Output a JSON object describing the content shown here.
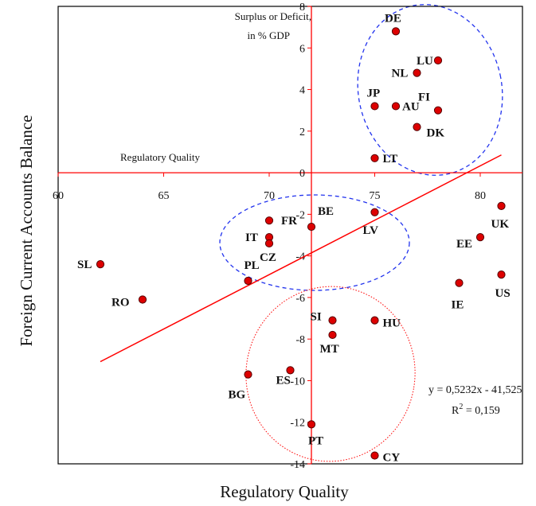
{
  "colors": {
    "axis": "#ff0000",
    "frame": "#000000",
    "point_fill": "#dd0000",
    "point_stroke": "#550000",
    "regression": "#ff0000",
    "ellipse_upper": "#2233ee",
    "ellipse_mid": "#2233ee",
    "ellipse_lower": "#ff0000"
  },
  "chart_data": {
    "type": "scatter",
    "xlabel": "Regulatory Quality",
    "ylabel": "Foreign Current Accounts Balance",
    "x_axis_inline_label": "Regulatory Quality",
    "y_axis_note_line1": "Surplus or Deficit,",
    "y_axis_note_line2": "in % GDP",
    "xlim": [
      60,
      82
    ],
    "ylim": [
      -14,
      8
    ],
    "x_axis_crosses_at_y": 0,
    "y_axis_crosses_at_x": 72,
    "x_ticks": [
      60,
      65,
      70,
      75,
      80
    ],
    "x_tick_labels": [
      "60",
      "65",
      "70",
      "75",
      "80"
    ],
    "y_ticks": [
      8,
      6,
      4,
      2,
      0,
      -2,
      -4,
      -6,
      -8,
      -10,
      -12,
      -14
    ],
    "y_tick_labels": [
      "8",
      "6",
      "4",
      "2",
      "0",
      "-2",
      "-4",
      "-6",
      "-8",
      "-10",
      "-12",
      "-14"
    ],
    "grid": false,
    "points": [
      {
        "label": "DE",
        "x": 76,
        "y": 6.8
      },
      {
        "label": "LU",
        "x": 78,
        "y": 5.4
      },
      {
        "label": "NL",
        "x": 77,
        "y": 4.8
      },
      {
        "label": "JP",
        "x": 75,
        "y": 3.2
      },
      {
        "label": "AU",
        "x": 76,
        "y": 3.2
      },
      {
        "label": "FI",
        "x": 78,
        "y": 3.0
      },
      {
        "label": "DK",
        "x": 77,
        "y": 2.2
      },
      {
        "label": "LT",
        "x": 75,
        "y": 0.7
      },
      {
        "label": "FR",
        "x": 70,
        "y": -2.3
      },
      {
        "label": "BE",
        "x": 72,
        "y": -2.6
      },
      {
        "label": "LV",
        "x": 75,
        "y": -1.9
      },
      {
        "label": "IT",
        "x": 70,
        "y": -3.1
      },
      {
        "label": "CZ",
        "x": 70,
        "y": -3.4
      },
      {
        "label": "PL",
        "x": 69,
        "y": -5.2
      },
      {
        "label": "SL",
        "x": 62,
        "y": -4.4
      },
      {
        "label": "RO",
        "x": 64,
        "y": -6.1
      },
      {
        "label": "UK",
        "x": 81,
        "y": -1.6
      },
      {
        "label": "EE",
        "x": 80,
        "y": -3.1
      },
      {
        "label": "US",
        "x": 81,
        "y": -4.9
      },
      {
        "label": "IE",
        "x": 79,
        "y": -5.3
      },
      {
        "label": "SI",
        "x": 73,
        "y": -7.1
      },
      {
        "label": "HU",
        "x": 75,
        "y": -7.1
      },
      {
        "label": "MT",
        "x": 73,
        "y": -7.8
      },
      {
        "label": "BG",
        "x": 69,
        "y": -9.7
      },
      {
        "label": "ES",
        "x": 71,
        "y": -9.5
      },
      {
        "label": "PT",
        "x": 72,
        "y": -12.1
      },
      {
        "label": "CY",
        "x": 75,
        "y": -13.6
      }
    ],
    "regression": {
      "slope": 0.5232,
      "intercept": -41.525,
      "x_range": [
        62,
        81
      ],
      "equation_label": "y = 0,5232x - 41,525",
      "r2_label": "R",
      "r2_label_sup": "2",
      "r2_label_value": " = 0,159"
    }
  }
}
